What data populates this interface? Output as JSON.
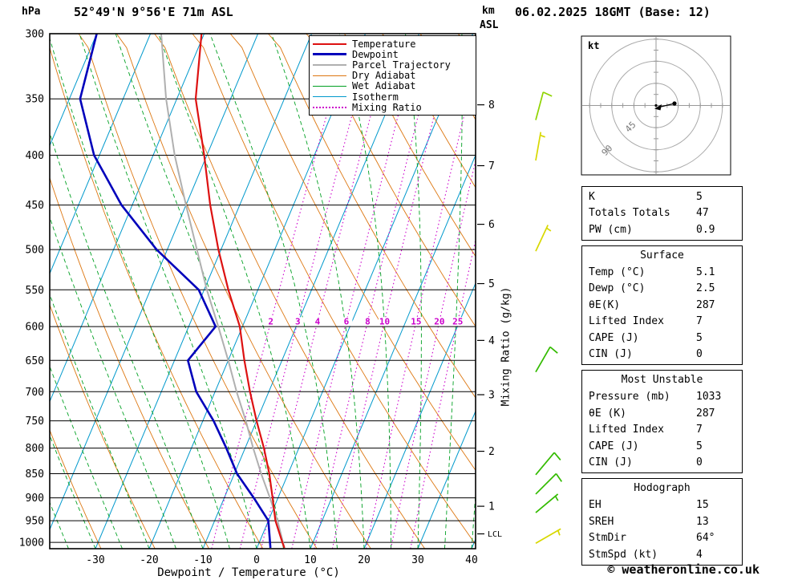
{
  "header": {
    "station_title": "52°49'N 9°56'E 71m ASL",
    "datetime_title": "06.02.2025 18GMT (Base: 12)"
  },
  "axes": {
    "pressure_unit": "hPa",
    "km_label": "km",
    "asl_label": "ASL",
    "x_axis_label": "Dewpoint / Temperature (°C)",
    "mixing_ratio_axis_label": "Mixing Ratio (g/kg)"
  },
  "footer": {
    "credit": "© weatheronline.co.uk"
  },
  "colors": {
    "temperature": "#dd1111",
    "dewpoint": "#0000bb",
    "parcel": "#b0b0b0",
    "dry_adiabat": "#dd7711",
    "wet_adiabat": "#00a022",
    "isotherm": "#0099cc",
    "mixing_ratio": "#cc00cc",
    "grid": "#000000"
  },
  "legend": {
    "items": [
      {
        "label": "Temperature",
        "color": "#dd1111",
        "style": "solid",
        "weight": 2
      },
      {
        "label": "Dewpoint",
        "color": "#0000bb",
        "style": "solid",
        "weight": 3
      },
      {
        "label": "Parcel Trajectory",
        "color": "#b0b0b0",
        "style": "solid",
        "weight": 2
      },
      {
        "label": "Dry Adiabat",
        "color": "#dd7711",
        "style": "solid",
        "weight": 1
      },
      {
        "label": "Wet Adiabat",
        "color": "#00a022",
        "style": "solid",
        "weight": 1
      },
      {
        "label": "Isotherm",
        "color": "#0099cc",
        "style": "solid",
        "weight": 1
      },
      {
        "label": "Mixing Ratio",
        "color": "#cc00cc",
        "style": "dotted",
        "weight": 2
      }
    ]
  },
  "table": {
    "sections": [
      {
        "title": null,
        "rows": [
          [
            "K",
            "5"
          ],
          [
            "Totals Totals",
            "47"
          ],
          [
            "PW (cm)",
            "0.9"
          ]
        ]
      },
      {
        "title": "Surface",
        "rows": [
          [
            "Temp (°C)",
            "5.1"
          ],
          [
            "Dewp (°C)",
            "2.5"
          ],
          [
            "θE(K)",
            "287"
          ],
          [
            "Lifted Index",
            "7"
          ],
          [
            "CAPE (J)",
            "5"
          ],
          [
            "CIN (J)",
            "0"
          ]
        ]
      },
      {
        "title": "Most Unstable",
        "rows": [
          [
            "Pressure (mb)",
            "1033"
          ],
          [
            "θE (K)",
            "287"
          ],
          [
            "Lifted Index",
            "7"
          ],
          [
            "CAPE (J)",
            "5"
          ],
          [
            "CIN (J)",
            "0"
          ]
        ]
      },
      {
        "title": "Hodograph",
        "rows": [
          [
            "EH",
            "15"
          ],
          [
            "SREH",
            "13"
          ],
          [
            "StmDir",
            "64°"
          ],
          [
            "StmSpd (kt)",
            "4"
          ]
        ]
      }
    ]
  },
  "chart_data": {
    "type": "skewt-log-p-sounding",
    "title": "52°49'N 9°56'E 71m ASL",
    "pressure_levels_hpa": [
      300,
      350,
      400,
      450,
      500,
      550,
      600,
      650,
      700,
      750,
      800,
      850,
      900,
      950,
      1000
    ],
    "temp_axis_c": [
      -30,
      -20,
      -10,
      0,
      10,
      20,
      30,
      40
    ],
    "km_axis": {
      "ticks": [
        {
          "label": "8",
          "p": 355
        },
        {
          "label": "7",
          "p": 410
        },
        {
          "label": "6",
          "p": 471
        },
        {
          "label": "5",
          "p": 542
        },
        {
          "label": "4",
          "p": 620
        },
        {
          "label": "3",
          "p": 705
        },
        {
          "label": "2",
          "p": 806
        },
        {
          "label": "1",
          "p": 918
        }
      ],
      "lcl_pressure": 980,
      "lcl_label": "LCL"
    },
    "mixing_ratio_lines": [
      2,
      3,
      4,
      6,
      8,
      10,
      15,
      20,
      25
    ],
    "series": [
      {
        "key": "parcel-trajectory",
        "name": "Parcel Trajectory",
        "color": "#b0b0b0",
        "width": 2,
        "points": [
          [
            300,
            -58
          ],
          [
            350,
            -52
          ],
          [
            400,
            -46
          ],
          [
            450,
            -40
          ],
          [
            500,
            -34.5
          ],
          [
            550,
            -29.5
          ],
          [
            600,
            -24.5
          ],
          [
            650,
            -20
          ],
          [
            700,
            -16
          ],
          [
            750,
            -12
          ],
          [
            800,
            -8.5
          ],
          [
            850,
            -5
          ],
          [
            900,
            -1.5
          ],
          [
            950,
            1.7
          ],
          [
            1013,
            5.1
          ]
        ]
      },
      {
        "key": "dewpoint",
        "name": "Dewpoint",
        "color": "#0000bb",
        "width": 2.6,
        "points": [
          [
            300,
            -70
          ],
          [
            350,
            -68
          ],
          [
            400,
            -61
          ],
          [
            450,
            -52
          ],
          [
            500,
            -42
          ],
          [
            550,
            -31
          ],
          [
            600,
            -25
          ],
          [
            650,
            -27.5
          ],
          [
            700,
            -23.5
          ],
          [
            750,
            -18
          ],
          [
            800,
            -13.5
          ],
          [
            850,
            -9.5
          ],
          [
            900,
            -4.5
          ],
          [
            950,
            0
          ],
          [
            1013,
            2.5
          ]
        ]
      },
      {
        "key": "temperature",
        "name": "Temperature",
        "color": "#dd1111",
        "width": 2.2,
        "points": [
          [
            300,
            -50.5
          ],
          [
            350,
            -46.5
          ],
          [
            400,
            -40.5
          ],
          [
            450,
            -35.5
          ],
          [
            500,
            -30.5
          ],
          [
            550,
            -25.5
          ],
          [
            600,
            -20.5
          ],
          [
            650,
            -17
          ],
          [
            700,
            -13.5
          ],
          [
            750,
            -10
          ],
          [
            800,
            -6.5
          ],
          [
            850,
            -3.5
          ],
          [
            900,
            -1
          ],
          [
            950,
            1.3
          ],
          [
            1000,
            4.3
          ],
          [
            1013,
            5.1
          ]
        ]
      }
    ],
    "surface": {
      "temp_c": 5.1,
      "dewp_c": 2.5
    },
    "wind_barbs": [
      {
        "p": 368,
        "dir": 15,
        "spd": 10,
        "color": "#8fd400"
      },
      {
        "p": 405,
        "dir": 10,
        "spd": 5,
        "color": "#d8d800"
      },
      {
        "p": 502,
        "dir": 25,
        "spd": 5,
        "color": "#d8d800"
      },
      {
        "p": 668,
        "dir": 30,
        "spd": 10,
        "color": "#33bb00"
      },
      {
        "p": 852,
        "dir": 40,
        "spd": 10,
        "color": "#33bb00"
      },
      {
        "p": 892,
        "dir": 45,
        "spd": 10,
        "color": "#33bb00"
      },
      {
        "p": 932,
        "dir": 50,
        "spd": 5,
        "color": "#33bb00"
      },
      {
        "p": 1002,
        "dir": 60,
        "spd": 5,
        "color": "#d8d800"
      }
    ],
    "hodograph": {
      "unit_label": "kt",
      "rings_kt": [
        30,
        60,
        90
      ],
      "ring_labels": [
        {
          "text": "45",
          "kt": 45
        },
        {
          "text": "90",
          "kt": 90
        }
      ],
      "storm_dir_deg": 64,
      "storm_spd_kt": 4
    }
  }
}
